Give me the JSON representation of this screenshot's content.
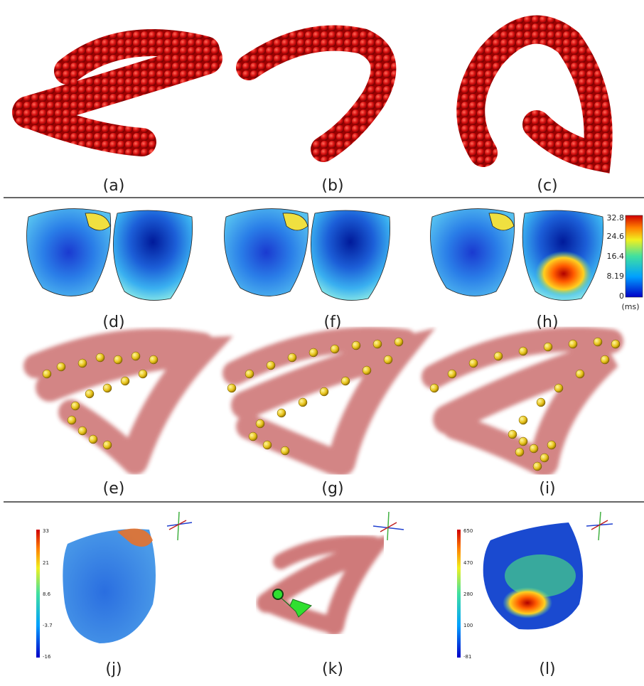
{
  "panels": [
    {
      "label": "(a)"
    },
    {
      "label": "(b)"
    },
    {
      "label": "(c)"
    },
    {
      "label": "(d)"
    },
    {
      "label": "(f)"
    },
    {
      "label": "(h)"
    },
    {
      "label": "(e)"
    },
    {
      "label": "(g)"
    },
    {
      "label": "(i)"
    },
    {
      "label": "(j)"
    },
    {
      "label": "(k)"
    },
    {
      "label": "(l)"
    }
  ],
  "colorbars": [
    {
      "ticks": [
        "32.8",
        "24.6",
        "16.4",
        "8.19",
        "0"
      ],
      "unit": "(ms)"
    },
    {
      "ticks": [
        "33",
        "21",
        "8.6",
        "-3.7",
        "-16"
      ]
    },
    {
      "ticks": [
        "650",
        "470",
        "280",
        "100",
        "-81"
      ]
    }
  ]
}
